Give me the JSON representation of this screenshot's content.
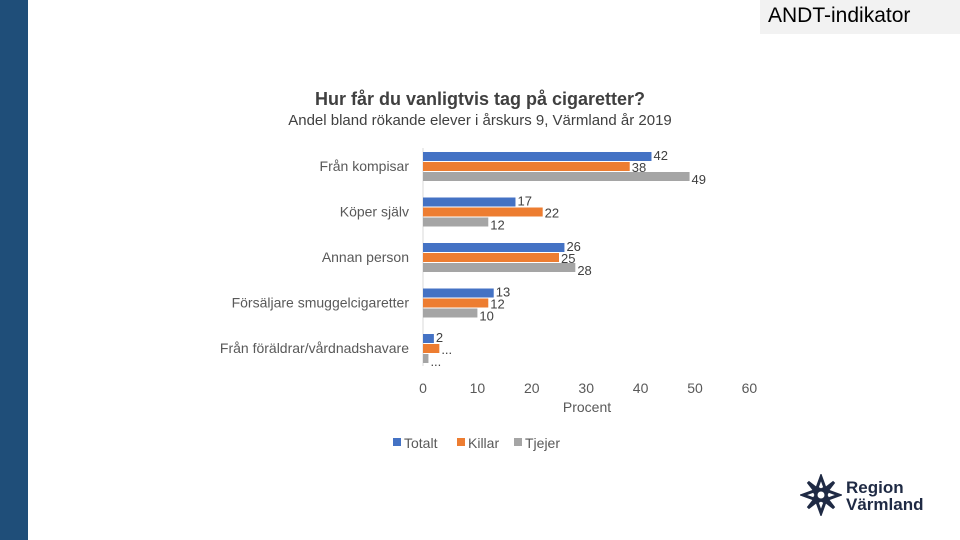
{
  "header": {
    "tag": "ANDT-indikator"
  },
  "logo": {
    "line1": "Region",
    "line2": "Värmland"
  },
  "colors": {
    "sidebar": "#1f4e79",
    "totalt": "#4472c4",
    "killar": "#ed7d31",
    "tjejer": "#a5a5a5"
  },
  "chart_data": {
    "type": "bar",
    "orientation": "horizontal",
    "title": "Hur får du vanligtvis tag på cigaretter?",
    "subtitle": "Andel bland rökande elever i årskurs 9, Värmland år 2019",
    "xlabel": "Procent",
    "xlim": [
      0,
      60
    ],
    "xticks": [
      0,
      10,
      20,
      30,
      40,
      50,
      60
    ],
    "categories": [
      "Från kompisar",
      "Köper själv",
      "Annan person",
      "Försäljare smuggelcigaretter",
      "Från föräldrar/vårdnadshavare"
    ],
    "series": [
      {
        "name": "Totalt",
        "color": "#4472c4",
        "values": [
          42,
          17,
          26,
          13,
          2
        ],
        "labels": [
          "42",
          "17",
          "26",
          "13",
          "2"
        ]
      },
      {
        "name": "Killar",
        "color": "#ed7d31",
        "values": [
          38,
          22,
          25,
          12,
          3
        ],
        "labels": [
          "38",
          "22",
          "25",
          "12",
          "..."
        ]
      },
      {
        "name": "Tjejer",
        "color": "#a5a5a5",
        "values": [
          49,
          12,
          28,
          10,
          1
        ],
        "labels": [
          "49",
          "12",
          "28",
          "10",
          "..."
        ]
      }
    ],
    "legend": "bottom",
    "grid": false
  }
}
